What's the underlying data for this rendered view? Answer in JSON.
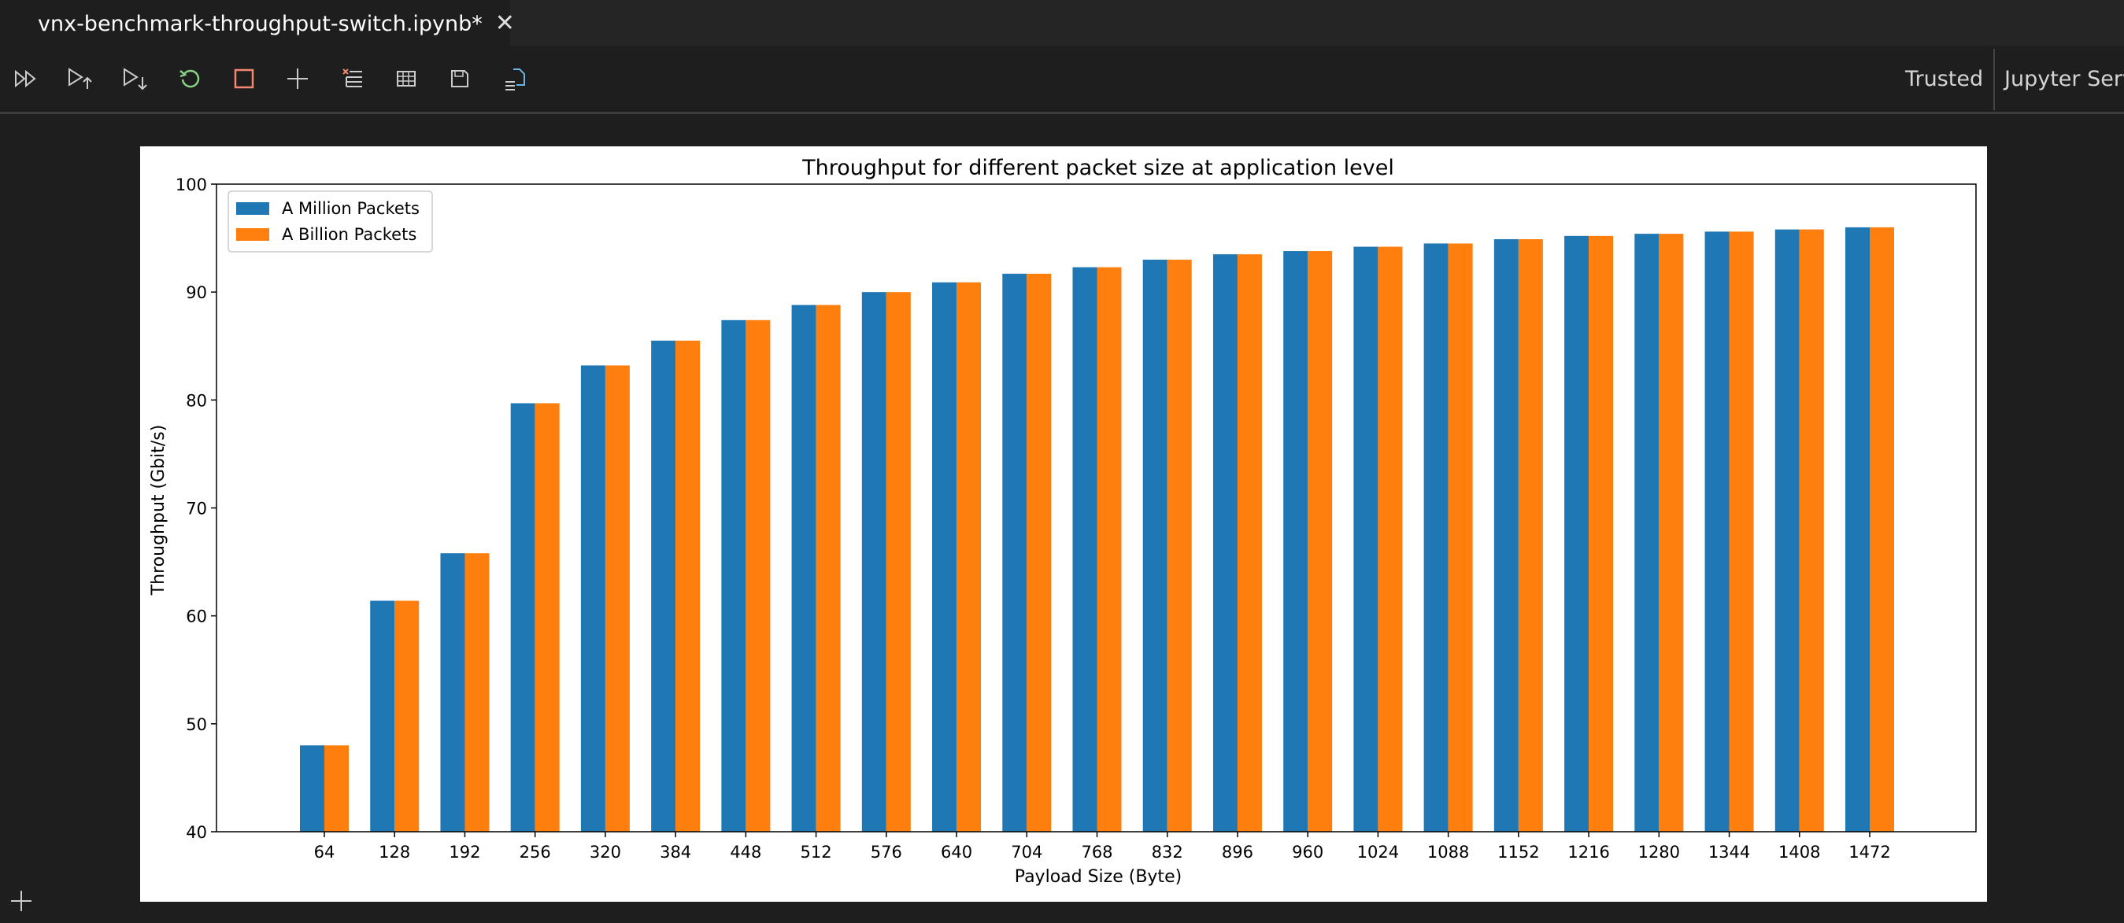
{
  "tab": {
    "title": "vnx-benchmark-throughput-switch.ipynb*",
    "close_glyph": "✕"
  },
  "toolbar": {
    "buttons": [
      {
        "name": "run-all-icon"
      },
      {
        "name": "run-above-icon"
      },
      {
        "name": "run-below-icon"
      },
      {
        "name": "restart-kernel-icon"
      },
      {
        "name": "interrupt-kernel-icon"
      },
      {
        "name": "add-cell-icon"
      },
      {
        "name": "clear-outputs-icon"
      },
      {
        "name": "variables-icon"
      },
      {
        "name": "save-icon"
      },
      {
        "name": "export-icon"
      }
    ],
    "trusted_label": "Trusted",
    "server_label": "Jupyter Serve"
  },
  "colors": {
    "series1": "#1f77b4",
    "series2": "#ff7f0e",
    "restart": "#89d185",
    "interrupt": "#f48771"
  },
  "chart_data": {
    "type": "bar",
    "title": "Throughput for different packet size at application level",
    "xlabel": "Payload Size (Byte)",
    "ylabel": "Throughput (Gbit/s)",
    "ylim": [
      40,
      100
    ],
    "yticks": [
      40,
      50,
      60,
      70,
      80,
      90,
      100
    ],
    "grid": false,
    "legend_position": "top-left",
    "categories": [
      "64",
      "128",
      "192",
      "256",
      "320",
      "384",
      "448",
      "512",
      "576",
      "640",
      "704",
      "768",
      "832",
      "896",
      "960",
      "1024",
      "1088",
      "1152",
      "1216",
      "1280",
      "1344",
      "1408",
      "1472"
    ],
    "series": [
      {
        "name": "A Million Packets",
        "color": "#1f77b4",
        "values": [
          48.0,
          61.4,
          65.8,
          79.7,
          83.2,
          85.5,
          87.4,
          88.8,
          90.0,
          90.9,
          91.7,
          92.3,
          93.0,
          93.5,
          93.8,
          94.2,
          94.5,
          94.9,
          95.2,
          95.4,
          95.6,
          95.8,
          96.0
        ]
      },
      {
        "name": "A Billion Packets",
        "color": "#ff7f0e",
        "values": [
          48.0,
          61.4,
          65.8,
          79.7,
          83.2,
          85.5,
          87.4,
          88.8,
          90.0,
          90.9,
          91.7,
          92.3,
          93.0,
          93.5,
          93.8,
          94.2,
          94.5,
          94.9,
          95.2,
          95.4,
          95.6,
          95.8,
          96.0
        ]
      }
    ]
  }
}
